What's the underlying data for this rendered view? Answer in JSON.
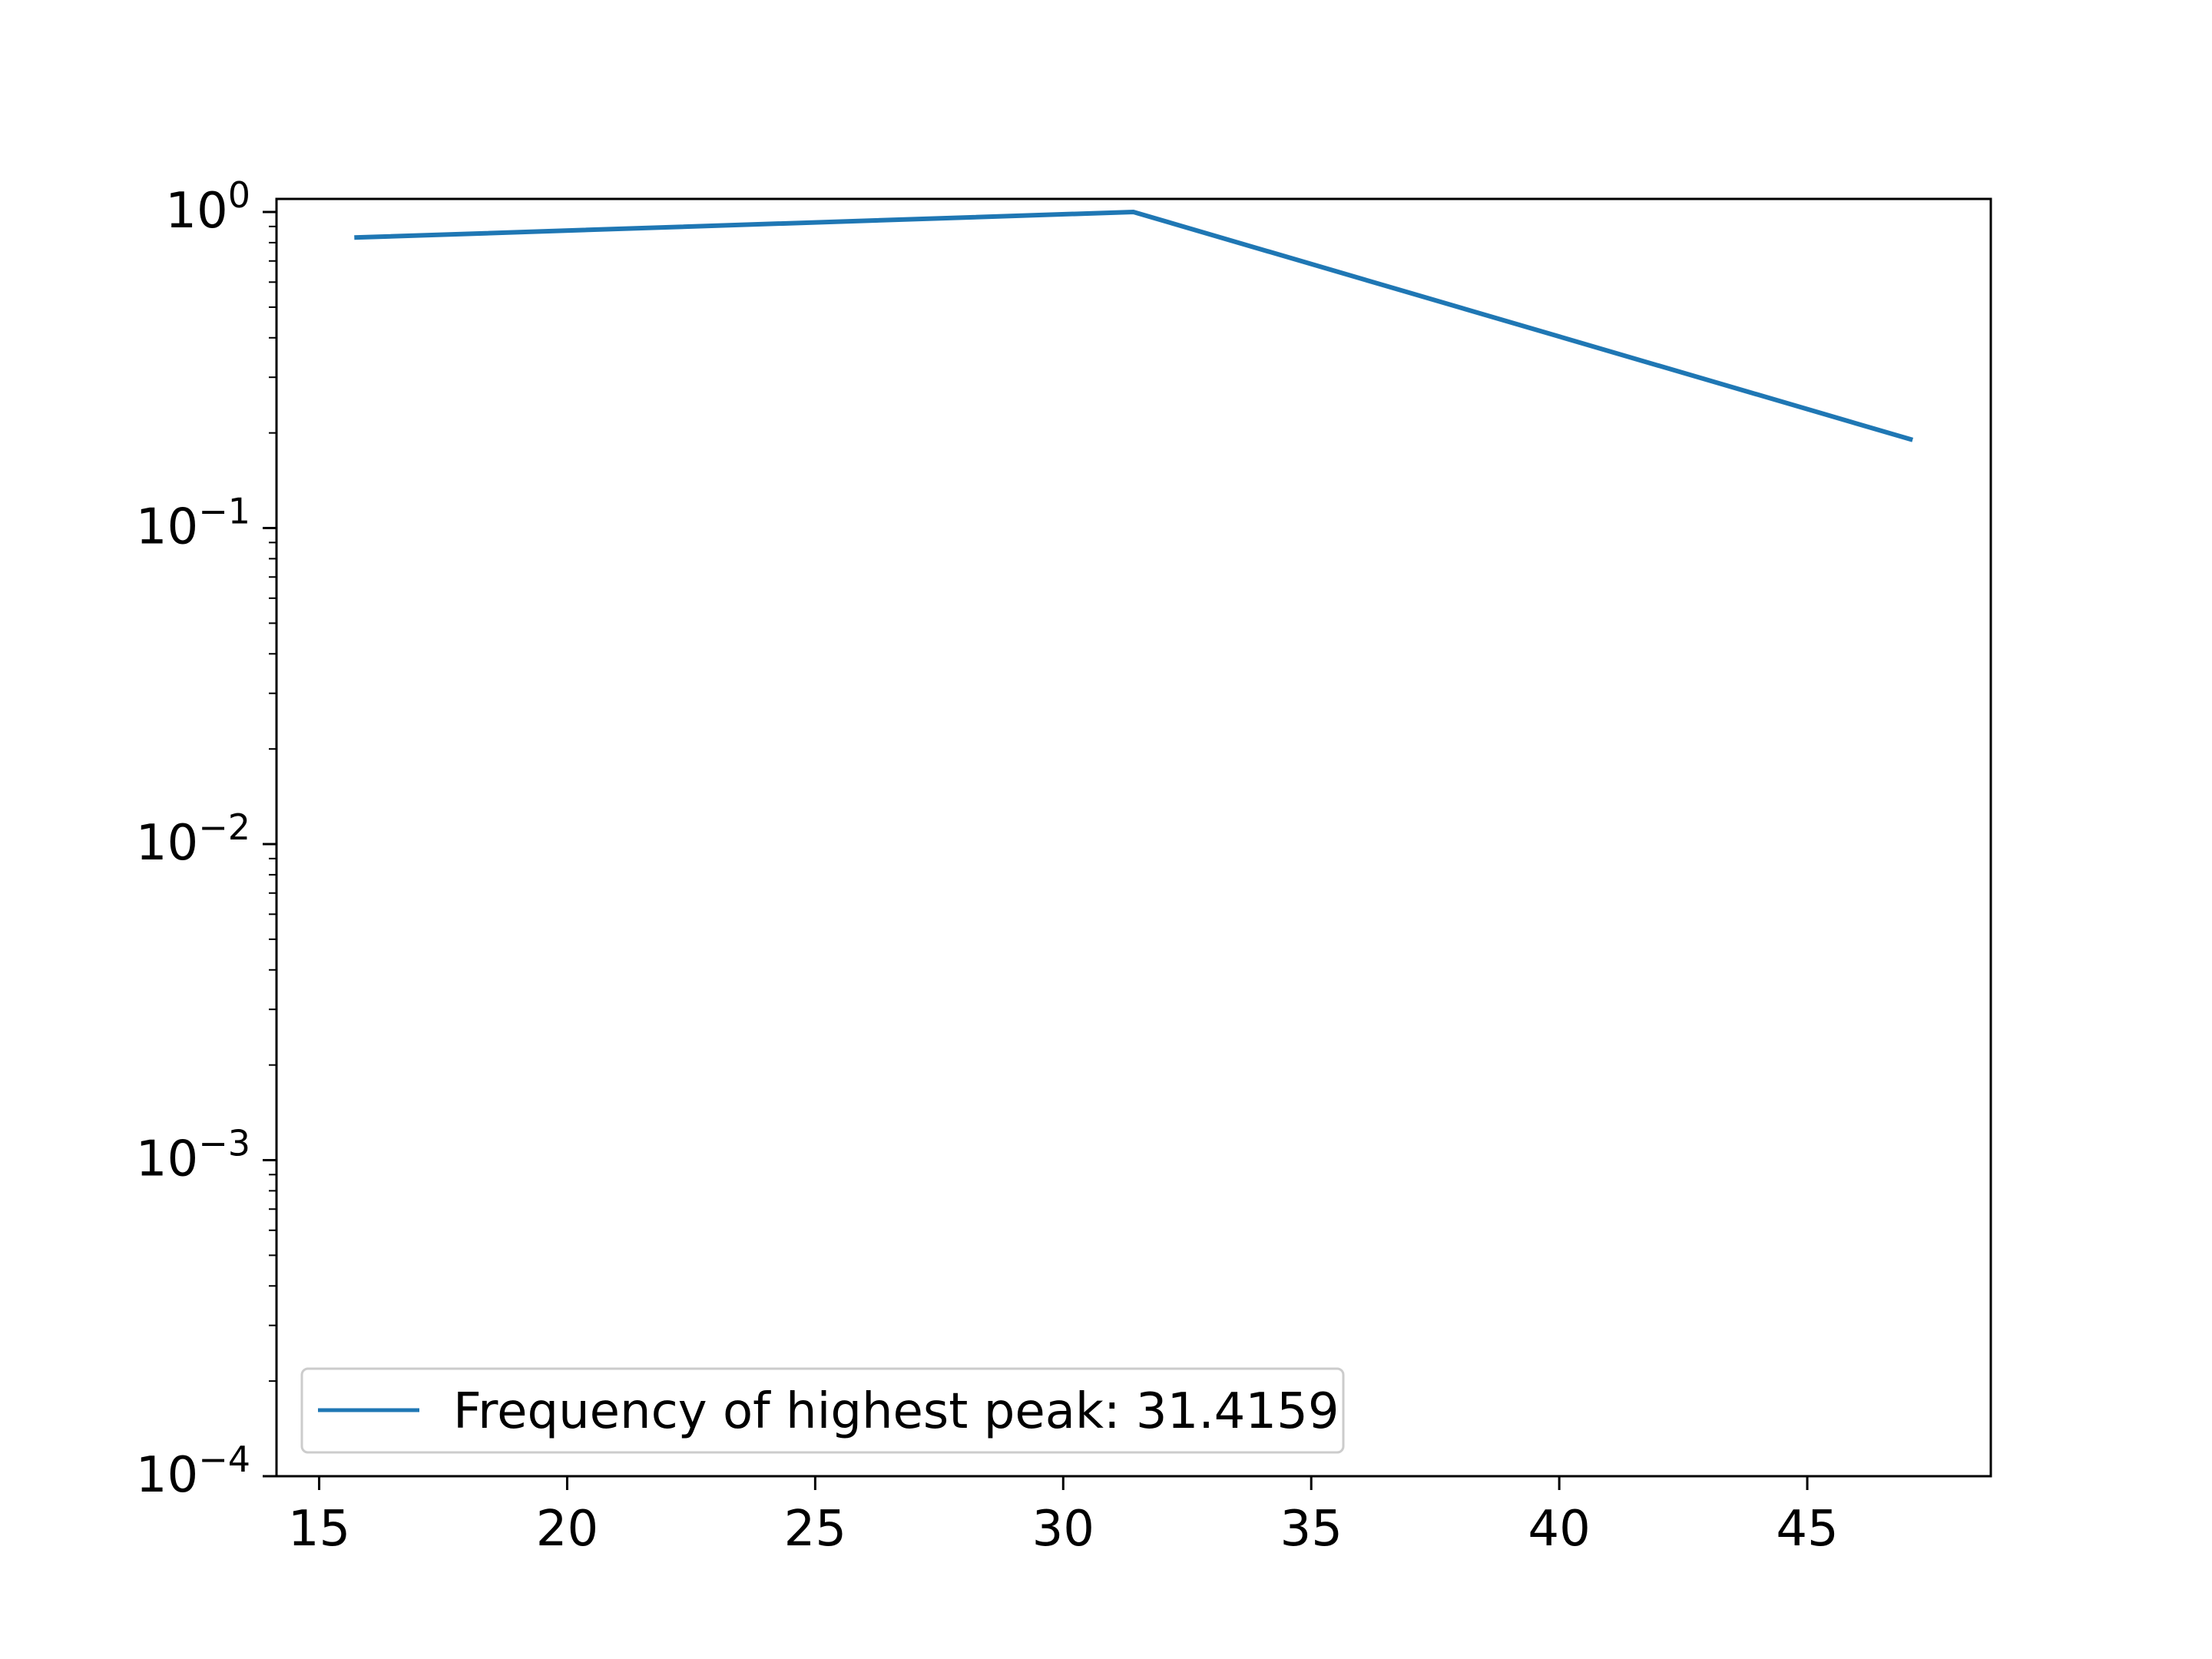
{
  "chart_data": {
    "type": "line",
    "title": "",
    "xlabel": "",
    "ylabel": "",
    "yscale": "log",
    "xlim": [
      14.14,
      48.7
    ],
    "ylim": [
      0.0001,
      1.1
    ],
    "x_ticks": [
      15,
      20,
      25,
      30,
      35,
      40,
      45
    ],
    "x_tick_labels": [
      "15",
      "20",
      "25",
      "30",
      "35",
      "40",
      "45"
    ],
    "y_ticks": [
      {
        "value": 1,
        "base": "10",
        "exp": "0"
      },
      {
        "value": 0.1,
        "base": "10",
        "exp": "−1"
      },
      {
        "value": 0.01,
        "base": "10",
        "exp": "−2"
      },
      {
        "value": 0.001,
        "base": "10",
        "exp": "−3"
      },
      {
        "value": 0.0001,
        "base": "10",
        "exp": "−4"
      }
    ],
    "grid": false,
    "legend_position": "lower-left",
    "series": [
      {
        "name": "Frequency of highest peak: 31.4159",
        "color": "#1f77b4",
        "x": [
          15.708,
          31.4159,
          47.124
        ],
        "y": [
          0.83,
          1.0,
          0.19
        ]
      }
    ]
  }
}
